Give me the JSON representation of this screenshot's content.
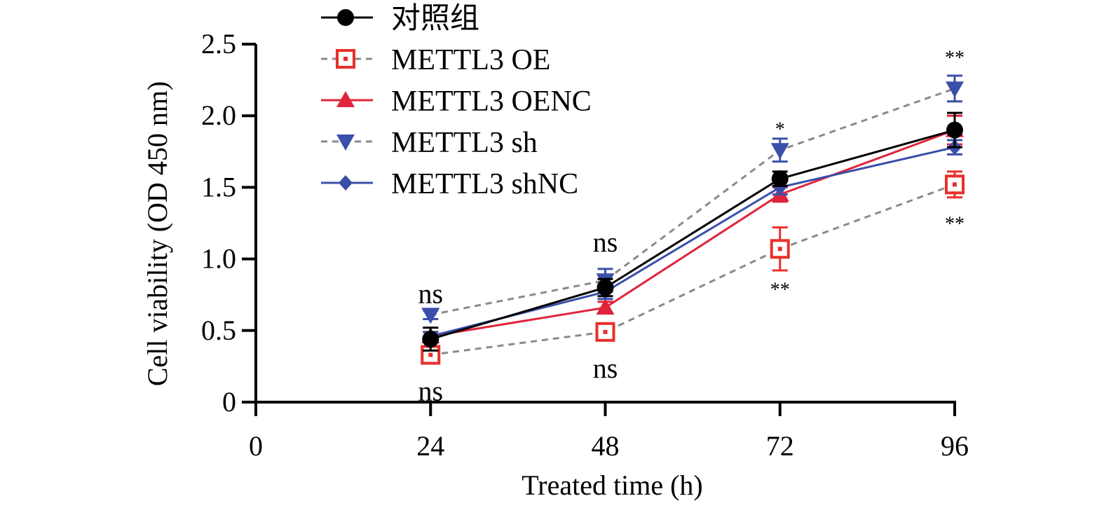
{
  "chart_data": {
    "type": "line",
    "title": "",
    "xlabel": "Treated time (h)",
    "ylabel": "Cell viability (OD 450 nm)",
    "xlim": [
      0,
      96
    ],
    "ylim": [
      0,
      2.5
    ],
    "xticks": [
      "0",
      "24",
      "48",
      "72",
      "96"
    ],
    "yticks": [
      "0",
      "0.5",
      "1.0",
      "1.5",
      "2.0",
      "2.5"
    ],
    "x": [
      24,
      48,
      72,
      96
    ],
    "legend_position": "top-left",
    "series": [
      {
        "name": "对照组",
        "values": [
          0.44,
          0.8,
          1.56,
          1.9
        ],
        "errors": [
          0.08,
          0.06,
          0.05,
          0.12
        ],
        "color": "#000000",
        "dash": "solid",
        "marker": "circle"
      },
      {
        "name": "METTL3 OE",
        "values": [
          0.33,
          0.49,
          1.07,
          1.52
        ],
        "errors": [
          0.04,
          0.05,
          0.15,
          0.09
        ],
        "color": "#e8302a",
        "dash": "dashed",
        "marker": "open-square"
      },
      {
        "name": "METTL3 OENC",
        "values": [
          0.46,
          0.66,
          1.45,
          1.9
        ],
        "errors": [
          0.03,
          0.04,
          0.05,
          0.1
        ],
        "color": "#e0243a",
        "dash": "solid",
        "marker": "triangle-up"
      },
      {
        "name": "METTL3 sh",
        "values": [
          0.61,
          0.85,
          1.76,
          2.19
        ],
        "errors": [
          0.03,
          0.08,
          0.08,
          0.09
        ],
        "color": "#3a4fa8",
        "dash": "dashed",
        "marker": "triangle-down"
      },
      {
        "name": "METTL3 shNC",
        "values": [
          0.46,
          0.77,
          1.5,
          1.78
        ],
        "errors": [
          0.03,
          0.05,
          0.05,
          0.05
        ],
        "color": "#3a4fa8",
        "dash": "solid",
        "marker": "diamond"
      }
    ],
    "annotations": [
      {
        "text": "ns",
        "x": 24,
        "y": 0.76,
        "size": "large"
      },
      {
        "text": "ns",
        "x": 24,
        "y": 0.08,
        "size": "large"
      },
      {
        "text": "ns",
        "x": 48,
        "y": 1.12,
        "size": "large"
      },
      {
        "text": "ns",
        "x": 48,
        "y": 0.24,
        "size": "large"
      },
      {
        "text": "*",
        "x": 72,
        "y": 1.93,
        "size": "small"
      },
      {
        "text": "**",
        "x": 72,
        "y": 0.81,
        "size": "small"
      },
      {
        "text": "**",
        "x": 96,
        "y": 2.43,
        "size": "small"
      },
      {
        "text": "**",
        "x": 96,
        "y": 1.27,
        "size": "small"
      }
    ]
  }
}
